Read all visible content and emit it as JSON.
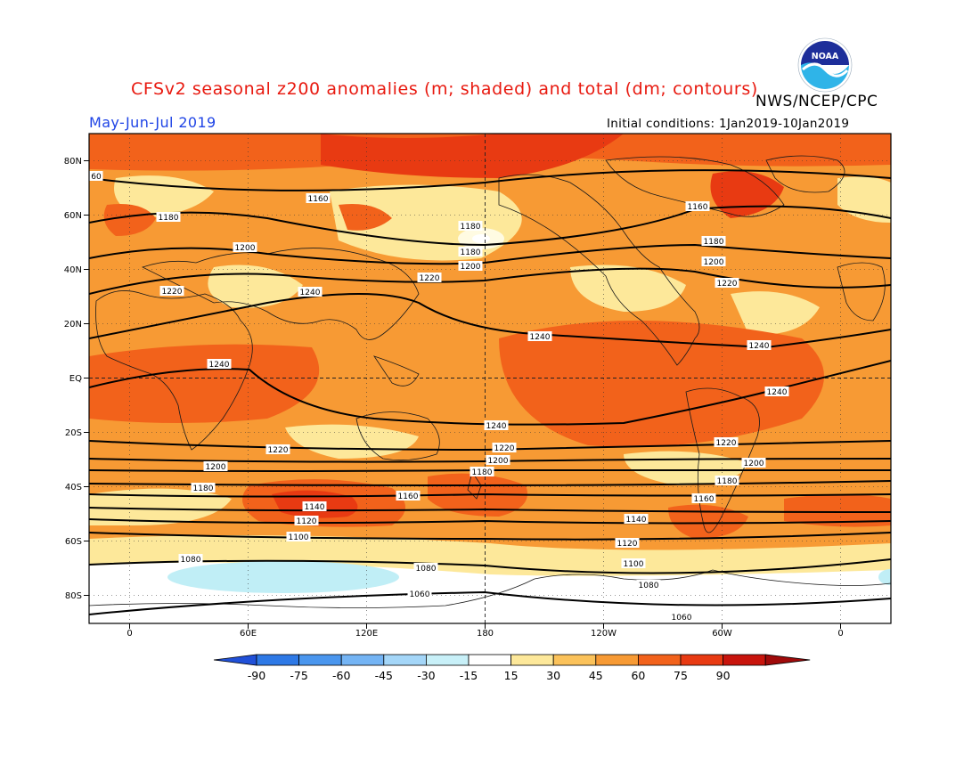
{
  "header": {
    "title": "CFSv2 seasonal z200 anomalies (m; shaded) and total (dm; contours)",
    "agency": "NWS/NCEP/CPC",
    "period": "May-Jun-Jul 2019",
    "initial_conditions": "Initial conditions: 1Jan2019-10Jan2019",
    "logo_text": "NOAA"
  },
  "map": {
    "lat_ticks": [
      "80N",
      "60N",
      "40N",
      "20N",
      "EQ",
      "20S",
      "40S",
      "60S",
      "80S"
    ],
    "lon_ticks": [
      "0",
      "60E",
      "120E",
      "180",
      "120W",
      "60W",
      "0"
    ]
  },
  "contour_labels": [
    {
      "text": "60"
    },
    {
      "text": "1160"
    },
    {
      "text": "1180"
    },
    {
      "text": "1180"
    },
    {
      "text": "1160"
    },
    {
      "text": "1200"
    },
    {
      "text": "1180"
    },
    {
      "text": "1180"
    },
    {
      "text": "1200"
    },
    {
      "text": "1200"
    },
    {
      "text": "1220"
    },
    {
      "text": "1240"
    },
    {
      "text": "1220"
    },
    {
      "text": "1220"
    },
    {
      "text": "1240"
    },
    {
      "text": "1240"
    },
    {
      "text": "1240"
    },
    {
      "text": "1240"
    },
    {
      "text": "1240"
    },
    {
      "text": "1220"
    },
    {
      "text": "1220"
    },
    {
      "text": "1220"
    },
    {
      "text": "1200"
    },
    {
      "text": "1200"
    },
    {
      "text": "1200"
    },
    {
      "text": "1180"
    },
    {
      "text": "1180"
    },
    {
      "text": "1160"
    },
    {
      "text": "1180"
    },
    {
      "text": "1160"
    },
    {
      "text": "1140"
    },
    {
      "text": "1140"
    },
    {
      "text": "1120"
    },
    {
      "text": "1120"
    },
    {
      "text": "1100"
    },
    {
      "text": "1100"
    },
    {
      "text": "1080"
    },
    {
      "text": "1080"
    },
    {
      "text": "1080"
    },
    {
      "text": "1060"
    },
    {
      "text": "1060"
    }
  ],
  "colorbar": {
    "labels": [
      "-90",
      "-75",
      "-60",
      "-45",
      "-30",
      "-15",
      "15",
      "30",
      "45",
      "60",
      "75",
      "90"
    ],
    "colors": [
      "#2050d8",
      "#2e79e6",
      "#4a96ee",
      "#74b4f4",
      "#a4d6f8",
      "#c8f0f8",
      "#ffffff",
      "#fde89a",
      "#fbc25a",
      "#f79a34",
      "#f2621b",
      "#e83a12",
      "#c8140c",
      "#a00a0a"
    ]
  }
}
